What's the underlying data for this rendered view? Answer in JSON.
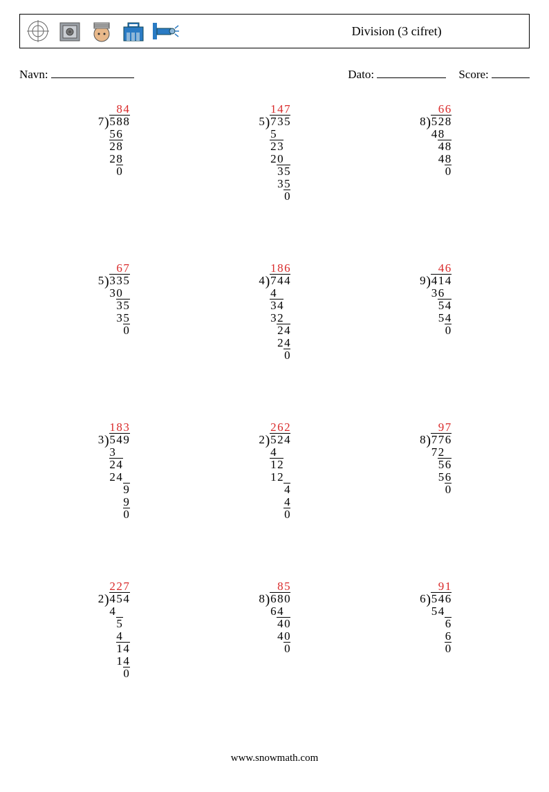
{
  "title": "Division (3 cifret)",
  "meta": {
    "name_label": "Navn:",
    "date_label": "Dato:",
    "score_label": "Score:",
    "name_blank_width": 120,
    "date_blank_width": 100,
    "score_blank_width": 55
  },
  "colors": {
    "quotient": "#d92a2a",
    "text": "#000000",
    "background": "#ffffff",
    "icon_blue": "#2a7bc4",
    "icon_gray": "#888888",
    "icon_skin": "#e8b88a"
  },
  "fonts": {
    "body_family": "Georgia, serif",
    "problem_size_pt": 13,
    "title_size_pt": 14,
    "meta_size_pt": 13
  },
  "footer": "www.snowmath.com",
  "icon_names": [
    "target-icon",
    "safe-icon",
    "prisoner-icon",
    "police-station-icon",
    "cctv-icon"
  ],
  "problems": [
    {
      "divisor": 7,
      "dividend": 588,
      "quotient": 84,
      "steps": [
        {
          "sub": 56,
          "col": 0,
          "w": 2
        },
        {
          "bring": 28,
          "col": 0,
          "w": 2,
          "bt": 2
        },
        {
          "sub": 28,
          "col": 0,
          "w": 2
        },
        {
          "rem": 0,
          "col": 1,
          "w": 1,
          "bt": 1
        }
      ]
    },
    {
      "divisor": 5,
      "dividend": 735,
      "quotient": 147,
      "steps": [
        {
          "sub": 5,
          "col": 0,
          "w": 1
        },
        {
          "bring": 23,
          "col": 0,
          "w": 2,
          "bt": 2
        },
        {
          "sub": 20,
          "col": 0,
          "w": 2
        },
        {
          "bring": 35,
          "col": 1,
          "w": 2,
          "bt": 2
        },
        {
          "sub": 35,
          "col": 1,
          "w": 2
        },
        {
          "rem": 0,
          "col": 2,
          "w": 1,
          "bt": 1
        }
      ]
    },
    {
      "divisor": 8,
      "dividend": 528,
      "quotient": 66,
      "steps": [
        {
          "sub": 48,
          "col": 0,
          "w": 2
        },
        {
          "bring": 48,
          "col": 1,
          "w": 2,
          "bt": 2
        },
        {
          "sub": 48,
          "col": 1,
          "w": 2
        },
        {
          "rem": 0,
          "col": 2,
          "w": 1,
          "bt": 1
        }
      ]
    },
    {
      "divisor": 5,
      "dividend": 335,
      "quotient": 67,
      "steps": [
        {
          "sub": 30,
          "col": 0,
          "w": 2
        },
        {
          "bring": 35,
          "col": 1,
          "w": 2,
          "bt": 2
        },
        {
          "sub": 35,
          "col": 1,
          "w": 2
        },
        {
          "rem": 0,
          "col": 2,
          "w": 1,
          "bt": 1
        }
      ]
    },
    {
      "divisor": 4,
      "dividend": 744,
      "quotient": 186,
      "steps": [
        {
          "sub": 4,
          "col": 0,
          "w": 1
        },
        {
          "bring": 34,
          "col": 0,
          "w": 2,
          "bt": 2
        },
        {
          "sub": 32,
          "col": 0,
          "w": 2
        },
        {
          "bring": 24,
          "col": 1,
          "w": 2,
          "bt": 2
        },
        {
          "sub": 24,
          "col": 1,
          "w": 2
        },
        {
          "rem": 0,
          "col": 2,
          "w": 1,
          "bt": 1
        }
      ]
    },
    {
      "divisor": 9,
      "dividend": 414,
      "quotient": 46,
      "steps": [
        {
          "sub": 36,
          "col": 0,
          "w": 2
        },
        {
          "bring": 54,
          "col": 1,
          "w": 2,
          "bt": 2
        },
        {
          "sub": 54,
          "col": 1,
          "w": 2
        },
        {
          "rem": 0,
          "col": 2,
          "w": 1,
          "bt": 1
        }
      ]
    },
    {
      "divisor": 3,
      "dividend": 549,
      "quotient": 183,
      "steps": [
        {
          "sub": 3,
          "col": 0,
          "w": 1
        },
        {
          "bring": 24,
          "col": 0,
          "w": 2,
          "bt": 2
        },
        {
          "sub": 24,
          "col": 0,
          "w": 2
        },
        {
          "bring": 9,
          "col": 2,
          "w": 1,
          "bt": 1
        },
        {
          "sub": 9,
          "col": 2,
          "w": 1
        },
        {
          "rem": 0,
          "col": 2,
          "w": 1,
          "bt": 1
        }
      ]
    },
    {
      "divisor": 2,
      "dividend": 524,
      "quotient": 262,
      "steps": [
        {
          "sub": 4,
          "col": 0,
          "w": 1
        },
        {
          "bring": 12,
          "col": 0,
          "w": 2,
          "bt": 2
        },
        {
          "sub": 12,
          "col": 0,
          "w": 2
        },
        {
          "bring": 4,
          "col": 2,
          "w": 1,
          "bt": 1
        },
        {
          "sub": 4,
          "col": 2,
          "w": 1
        },
        {
          "rem": 0,
          "col": 2,
          "w": 1,
          "bt": 1
        }
      ]
    },
    {
      "divisor": 8,
      "dividend": 776,
      "quotient": 97,
      "steps": [
        {
          "sub": 72,
          "col": 0,
          "w": 2
        },
        {
          "bring": 56,
          "col": 1,
          "w": 2,
          "bt": 2
        },
        {
          "sub": 56,
          "col": 1,
          "w": 2
        },
        {
          "rem": 0,
          "col": 2,
          "w": 1,
          "bt": 1
        }
      ]
    },
    {
      "divisor": 2,
      "dividend": 454,
      "quotient": 227,
      "steps": [
        {
          "sub": 4,
          "col": 0,
          "w": 1
        },
        {
          "bring": 5,
          "col": 1,
          "w": 1,
          "bt": 1
        },
        {
          "sub": 4,
          "col": 1,
          "w": 1
        },
        {
          "bring": 14,
          "col": 1,
          "w": 2,
          "bt": 2
        },
        {
          "sub": 14,
          "col": 1,
          "w": 2
        },
        {
          "rem": 0,
          "col": 2,
          "w": 1,
          "bt": 1
        }
      ]
    },
    {
      "divisor": 8,
      "dividend": 680,
      "quotient": 85,
      "steps": [
        {
          "sub": 64,
          "col": 0,
          "w": 2
        },
        {
          "bring": 40,
          "col": 1,
          "w": 2,
          "bt": 2
        },
        {
          "sub": 40,
          "col": 1,
          "w": 2
        },
        {
          "rem": 0,
          "col": 2,
          "w": 1,
          "bt": 1
        }
      ]
    },
    {
      "divisor": 6,
      "dividend": 546,
      "quotient": 91,
      "steps": [
        {
          "sub": 54,
          "col": 0,
          "w": 2
        },
        {
          "bring": 6,
          "col": 2,
          "w": 1,
          "bt": 1
        },
        {
          "sub": 6,
          "col": 2,
          "w": 1
        },
        {
          "rem": 0,
          "col": 2,
          "w": 1,
          "bt": 1
        }
      ]
    }
  ]
}
